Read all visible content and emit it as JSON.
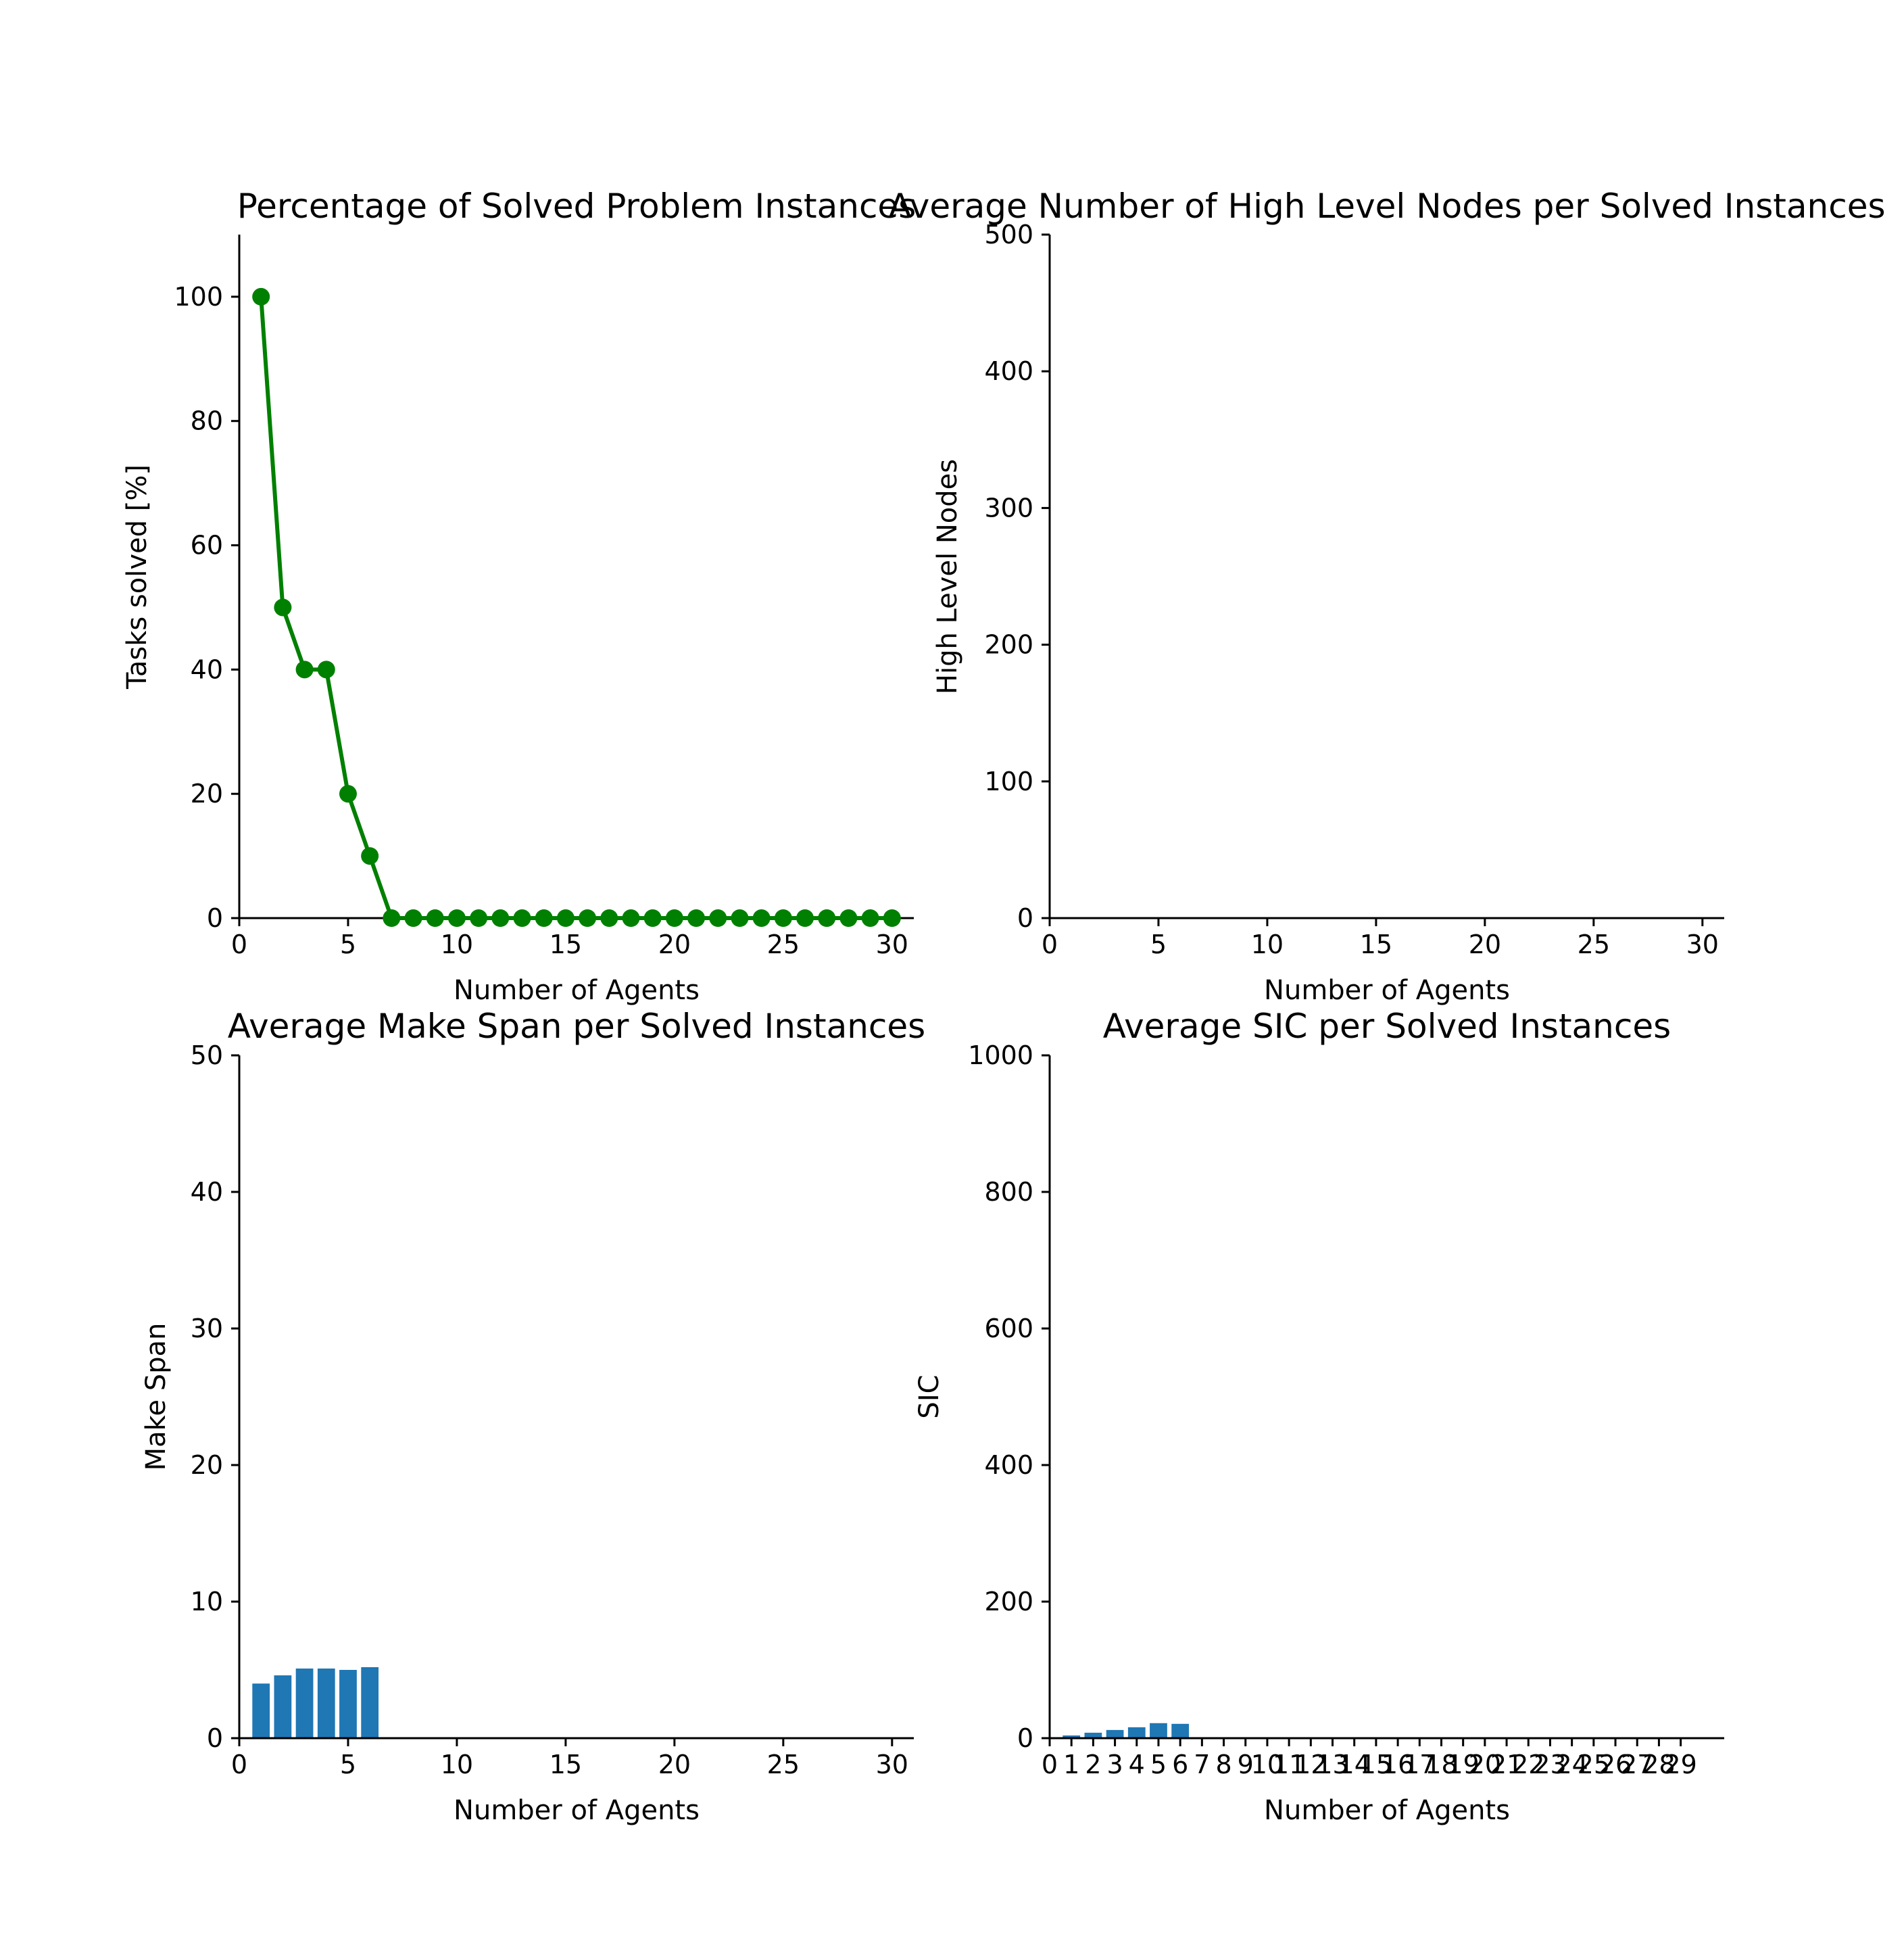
{
  "chart_data": [
    {
      "type": "line",
      "title": "Percentage of Solved Problem Instances",
      "xlabel": "Number of Agents",
      "ylabel": "Tasks solved [%]",
      "xlim": [
        0,
        31
      ],
      "ylim": [
        0,
        110
      ],
      "xticks": [
        0,
        5,
        10,
        15,
        20,
        25,
        30
      ],
      "yticks": [
        0,
        20,
        40,
        60,
        80,
        100
      ],
      "grid": false,
      "colors": {
        "line": "#008000",
        "marker": "#008000"
      },
      "x": [
        1,
        2,
        3,
        4,
        5,
        6,
        7,
        8,
        9,
        10,
        11,
        12,
        13,
        14,
        15,
        16,
        17,
        18,
        19,
        20,
        21,
        22,
        23,
        24,
        25,
        26,
        27,
        28,
        29,
        30
      ],
      "y": [
        100,
        50,
        40,
        40,
        20,
        10,
        0,
        0,
        0,
        0,
        0,
        0,
        0,
        0,
        0,
        0,
        0,
        0,
        0,
        0,
        0,
        0,
        0,
        0,
        0,
        0,
        0,
        0,
        0,
        0
      ]
    },
    {
      "type": "bar",
      "title": "Average Number of High Level Nodes per Solved Instances",
      "xlabel": "Number of Agents",
      "ylabel": "High Level Nodes",
      "xlim": [
        0,
        31
      ],
      "ylim": [
        0,
        500
      ],
      "xticks": [
        0,
        5,
        10,
        15,
        20,
        25,
        30
      ],
      "yticks": [
        0,
        100,
        200,
        300,
        400,
        500
      ],
      "grid": false,
      "colors": {
        "bar": "#1f77b4"
      },
      "x": [],
      "values": []
    },
    {
      "type": "bar",
      "title": "Average Make Span per Solved Instances",
      "xlabel": "Number of Agents",
      "ylabel": "Make Span",
      "xlim": [
        0,
        31
      ],
      "ylim": [
        0,
        50
      ],
      "xticks": [
        0,
        5,
        10,
        15,
        20,
        25,
        30
      ],
      "yticks": [
        0,
        10,
        20,
        30,
        40,
        50
      ],
      "grid": false,
      "colors": {
        "bar": "#1f77b4"
      },
      "x": [
        1,
        2,
        3,
        4,
        5,
        6
      ],
      "values": [
        4.0,
        4.6,
        5.1,
        5.1,
        5.0,
        5.2
      ]
    },
    {
      "type": "bar",
      "title": "Average SIC per Solved Instances",
      "xlabel": "Number of Agents",
      "ylabel": "SIC",
      "xlim": [
        0,
        31
      ],
      "ylim": [
        0,
        1000
      ],
      "xticks": [
        0,
        1,
        2,
        3,
        4,
        5,
        6,
        7,
        8,
        9,
        10,
        11,
        12,
        13,
        14,
        15,
        16,
        17,
        18,
        19,
        20,
        21,
        22,
        23,
        24,
        25,
        26,
        27,
        28,
        29
      ],
      "yticks": [
        0,
        200,
        400,
        600,
        800,
        1000
      ],
      "grid": false,
      "colors": {
        "bar": "#1f77b4"
      },
      "x": [
        1,
        2,
        3,
        4,
        5,
        6
      ],
      "values": [
        4,
        8,
        12,
        16,
        22,
        21
      ]
    }
  ]
}
